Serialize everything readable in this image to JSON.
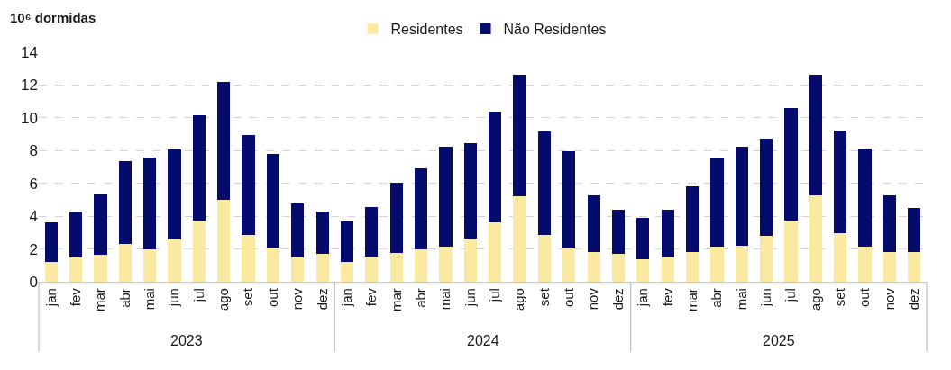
{
  "chart_data": {
    "type": "bar",
    "stacked": true,
    "ylabel": "10⁶ dormidas",
    "categories": [
      "jan",
      "fev",
      "mar",
      "abr",
      "mai",
      "jun",
      "jul",
      "ago",
      "set",
      "out",
      "nov",
      "dez",
      "jan",
      "fev",
      "mar",
      "abr",
      "mai",
      "jun",
      "jul",
      "ago",
      "set",
      "out",
      "nov",
      "dez",
      "jan",
      "fev",
      "mar",
      "abr",
      "mai",
      "jun",
      "jul",
      "ago",
      "set",
      "out",
      "nov",
      "dez"
    ],
    "annotations": [
      "2023",
      "2024",
      "2025"
    ],
    "series": [
      {
        "name": "Residentes",
        "color": "#f9e9a1",
        "values": [
          1.23,
          1.48,
          1.63,
          2.31,
          2.0,
          2.58,
          3.72,
          5.0,
          2.86,
          2.09,
          1.5,
          1.7,
          1.23,
          1.52,
          1.76,
          1.98,
          2.14,
          2.66,
          3.63,
          5.2,
          2.84,
          2.05,
          1.79,
          1.7,
          1.37,
          1.48,
          1.81,
          2.16,
          2.2,
          2.8,
          3.72,
          5.26,
          2.95,
          2.16,
          1.81,
          1.81
        ]
      },
      {
        "name": "Não Residentes",
        "color": "#050b6c",
        "values": [
          2.41,
          2.81,
          3.72,
          5.02,
          5.6,
          5.48,
          6.41,
          7.18,
          6.11,
          5.69,
          3.28,
          2.57,
          2.45,
          3.02,
          4.3,
          4.96,
          6.07,
          5.82,
          6.72,
          7.44,
          6.35,
          5.9,
          3.47,
          2.68,
          2.51,
          2.93,
          4.03,
          5.37,
          6.06,
          5.94,
          6.88,
          7.36,
          6.3,
          5.97,
          3.46,
          2.68
        ]
      }
    ],
    "ylim": [
      0,
      14
    ],
    "yticks": [
      0,
      2,
      4,
      6,
      8,
      10,
      12,
      14
    ],
    "grid": "y",
    "legend": "top"
  }
}
